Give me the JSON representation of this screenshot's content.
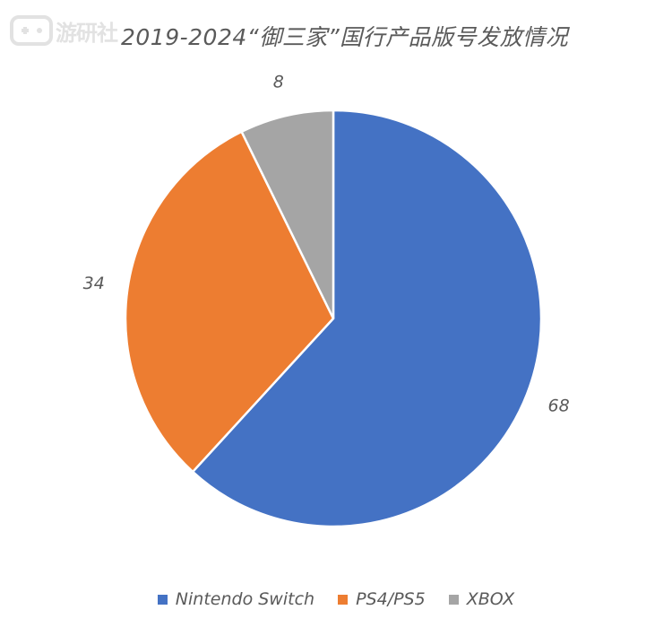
{
  "watermark": {
    "text": "游研社"
  },
  "chart_data": {
    "type": "pie",
    "title": "2019-2024“御三家”国行产品版号发放情况",
    "categories": [
      "Nintendo Switch",
      "PS4/PS5",
      "XBOX"
    ],
    "values": [
      68,
      34,
      8
    ],
    "data_labels": [
      "68",
      "34",
      "8"
    ],
    "colors": [
      "#4472C4",
      "#ED7D31",
      "#A5A5A5"
    ],
    "start_angle": "12 o'clock",
    "direction": "clockwise",
    "legend_position": "bottom"
  }
}
